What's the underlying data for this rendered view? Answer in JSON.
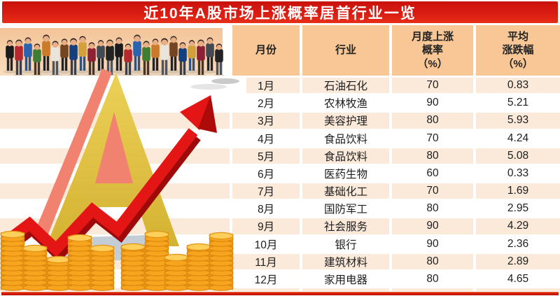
{
  "title": "近10年A股市场上涨概率居首行业一览",
  "table": {
    "headers": [
      "月份",
      "行业",
      "月度上涨\n概率\n（%）",
      "平均\n涨跌幅\n（%）"
    ],
    "rows": [
      {
        "month": "1月",
        "industry": "石油石化",
        "probability": "70",
        "avg_change": "0.83"
      },
      {
        "month": "2月",
        "industry": "农林牧渔",
        "probability": "90",
        "avg_change": "5.21"
      },
      {
        "month": "3月",
        "industry": "美容护理",
        "probability": "80",
        "avg_change": "5.93"
      },
      {
        "month": "4月",
        "industry": "食品饮料",
        "probability": "70",
        "avg_change": "4.24"
      },
      {
        "month": "5月",
        "industry": "食品饮料",
        "probability": "80",
        "avg_change": "5.08"
      },
      {
        "month": "6月",
        "industry": "医药生物",
        "probability": "60",
        "avg_change": "0.33"
      },
      {
        "month": "7月",
        "industry": "基础化工",
        "probability": "70",
        "avg_change": "1.69"
      },
      {
        "month": "8月",
        "industry": "国防军工",
        "probability": "80",
        "avg_change": "2.95"
      },
      {
        "month": "9月",
        "industry": "社会服务",
        "probability": "90",
        "avg_change": "4.29"
      },
      {
        "month": "10月",
        "industry": "银行",
        "probability": "90",
        "avg_change": "2.36"
      },
      {
        "month": "11月",
        "industry": "建筑材料",
        "probability": "80",
        "avg_change": "2.89"
      },
      {
        "month": "12月",
        "industry": "家用电器",
        "probability": "80",
        "avg_change": "4.65"
      }
    ]
  },
  "chart_data": {
    "type": "table",
    "title": "近10年A股市场上涨概率居首行业一览",
    "columns": [
      "月份",
      "行业",
      "月度上涨概率（%）",
      "平均涨跌幅（%）"
    ],
    "rows": [
      [
        "1月",
        "石油石化",
        70,
        0.83
      ],
      [
        "2月",
        "农林牧渔",
        90,
        5.21
      ],
      [
        "3月",
        "美容护理",
        80,
        5.93
      ],
      [
        "4月",
        "食品饮料",
        70,
        4.24
      ],
      [
        "5月",
        "食品饮料",
        80,
        5.08
      ],
      [
        "6月",
        "医药生物",
        60,
        0.33
      ],
      [
        "7月",
        "基础化工",
        70,
        1.69
      ],
      [
        "8月",
        "国防军工",
        80,
        2.95
      ],
      [
        "9月",
        "社会服务",
        90,
        4.29
      ],
      [
        "10月",
        "银行",
        90,
        2.36
      ],
      [
        "11月",
        "建筑材料",
        80,
        2.89
      ],
      [
        "12月",
        "家用电器",
        80,
        4.65
      ]
    ]
  },
  "colors": {
    "banner_red": "#d91c12",
    "header_peach": "#f8c795",
    "row_stripe_peach": "#fbe9da",
    "bottom_bar_red": "#d71c05",
    "arrow_red": "#e31515",
    "letter_a_yellow": "#e0c244",
    "letter_a_salmon": "#f0826f",
    "coin_gold": "#f5a51f",
    "text_dark": "#1d1d1d"
  },
  "illustration": {
    "elements": [
      "investor-crowd",
      "gold-letter-a",
      "rising-red-arrow",
      "gold-coin-stacks"
    ]
  }
}
